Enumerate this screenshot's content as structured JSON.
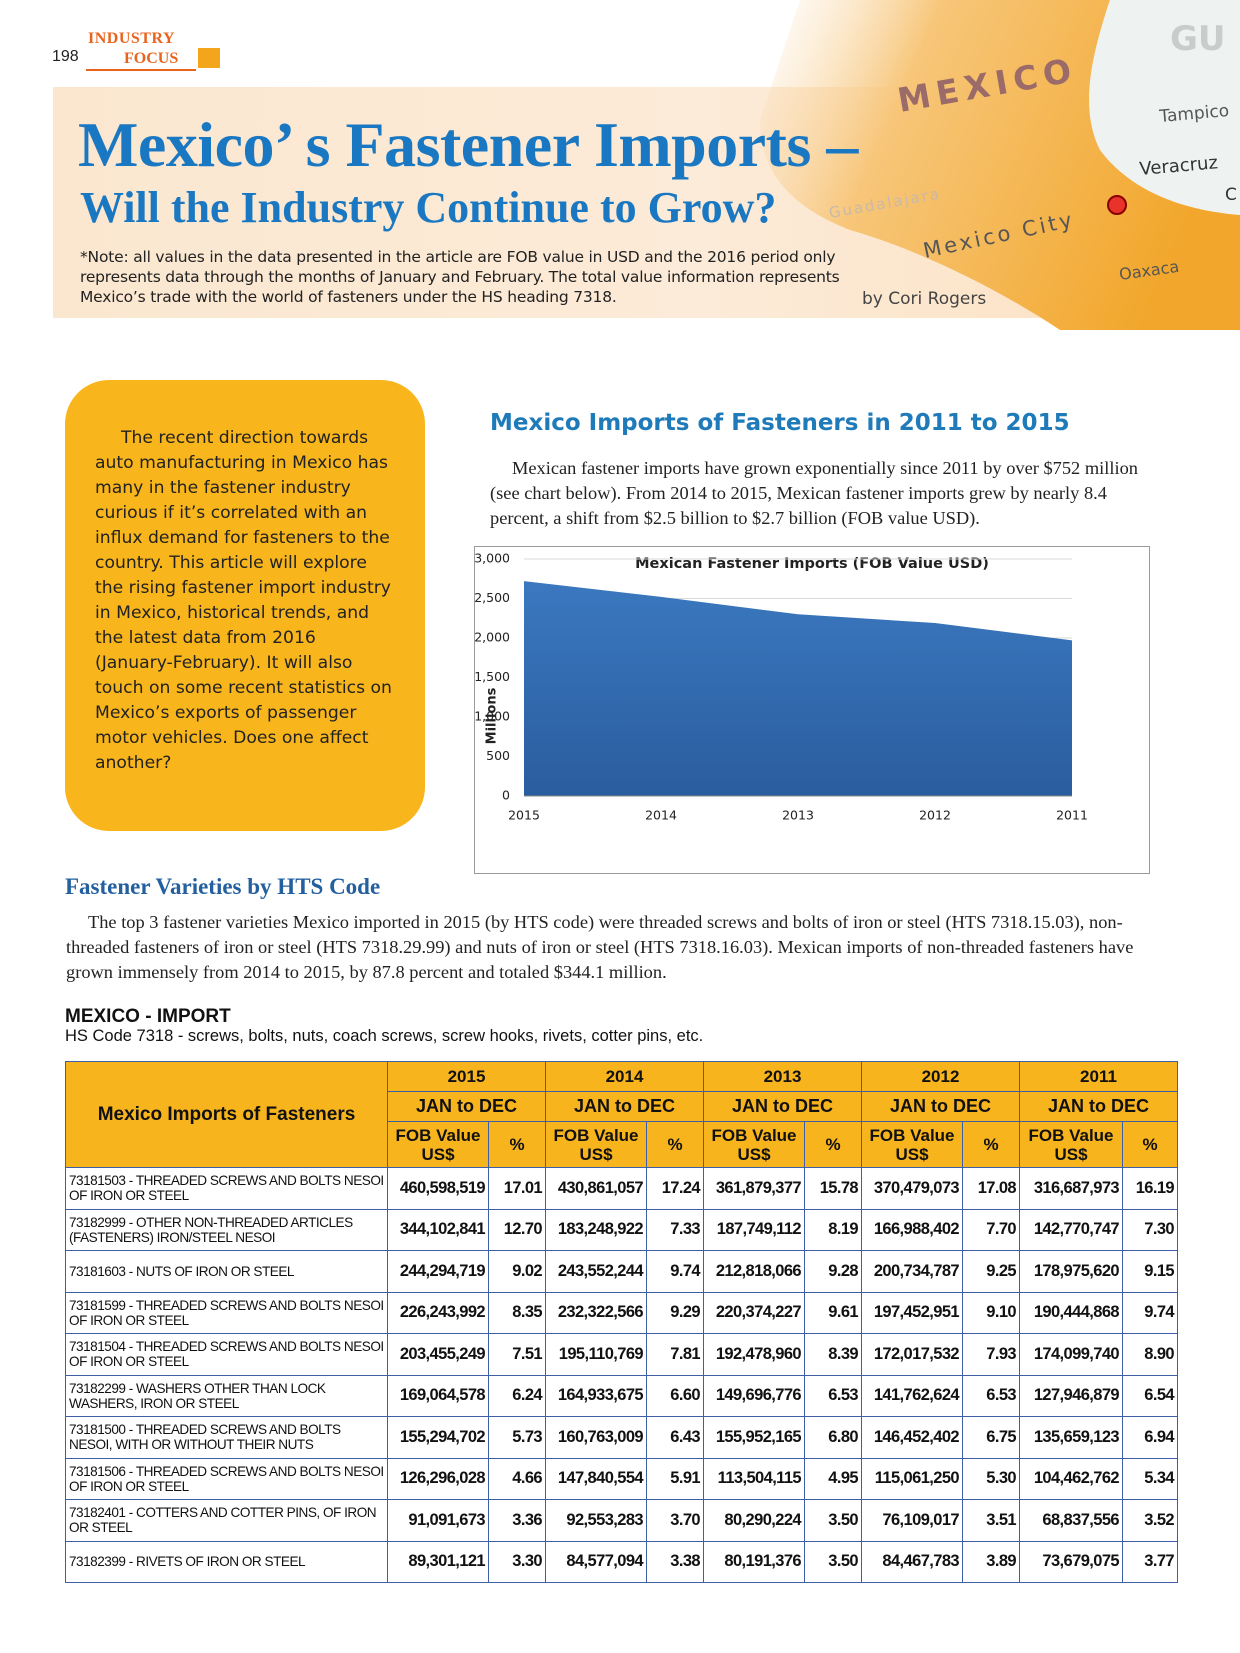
{
  "header": {
    "page_number": "198",
    "section_top": "INDUSTRY",
    "section_bottom": "FOCUS"
  },
  "map_labels": [
    "GU",
    "MEXICO",
    "Tampico",
    "Veracruz",
    "C",
    "Guadalajara",
    "Mexico City",
    "Oaxaca"
  ],
  "title": {
    "line1": "Mexico’ s Fastener Imports –",
    "line2": "Will the Industry Continue to Grow?"
  },
  "note": "*Note: all values in the data presented in the article are FOB value in USD and the 2016 period only represents data through the months of January and February. The total value information represents Mexico’s trade with the world of fasteners under the HS heading 7318.",
  "byline": "by Cori Rogers",
  "sidebar": "The recent direction towards auto manufacturing in Mexico has many in the fastener industry curious if it’s correlated with an influx demand for fasteners to the country. This article will explore the rising fastener import industry in Mexico, historical trends, and the latest data from 2016 (January-February). It will also touch on some recent statistics on Mexico’s exports of passenger motor vehicles. Does one affect another?",
  "section1": {
    "heading": "Mexico Imports of Fasteners in 2011 to 2015",
    "body": "Mexican fastener imports have grown exponentially since 2011 by over $752 million (see chart below). From 2014 to 2015, Mexican fastener imports grew by nearly 8.4 percent, a shift from $2.5 billion to $2.7 billion (FOB value USD)."
  },
  "chart_data": {
    "type": "area",
    "title": "Mexican Fastener Imports (FOB Value USD)",
    "y_label": "Millions",
    "categories": [
      "2015",
      "2014",
      "2013",
      "2012",
      "2011"
    ],
    "values": [
      2720,
      2520,
      2300,
      2190,
      1970
    ],
    "color": "#3b78bf",
    "ylim": [
      0,
      3000
    ],
    "yticks": [
      0,
      500,
      {
        "value": 1000,
        "label": "1,000"
      },
      {
        "value": 1500,
        "label": "1,500"
      },
      {
        "value": 2000,
        "label": "2,000"
      },
      {
        "value": 2500,
        "label": "2,500"
      },
      {
        "value": 3000,
        "label": "3,000"
      }
    ],
    "grid": true
  },
  "section2": {
    "heading": "Fastener Varieties by HTS Code",
    "body": "The top 3 fastener varieties Mexico imported in 2015 (by HTS code) were threaded screws and bolts of iron or steel (HTS 7318.15.03), non-threaded fasteners of iron or steel (HTS 7318.29.99) and nuts of iron or steel (HTS 7318.16.03). Mexican imports of non-threaded fasteners have grown immensely from 2014 to 2015, by 87.8 percent and totaled $344.1 million."
  },
  "table": {
    "title": "MEXICO - IMPORT",
    "subtitle": "HS Code 7318 - screws, bolts, nuts, coach screws, screw hooks, rivets, cotter pins, etc.",
    "corner": "Mexico Imports of Fasteners",
    "years": [
      "2015",
      "2014",
      "2013",
      "2012",
      "2011"
    ],
    "period": "JAN to DEC",
    "value_header": "FOB Value US$",
    "pct_header": "%",
    "rows": [
      {
        "description": "73181503 - THREADED SCREWS AND BOLTS NESOI OF IRON OR STEEL",
        "cells": [
          "460,598,519",
          "17.01",
          "430,861,057",
          "17.24",
          "361,879,377",
          "15.78",
          "370,479,073",
          "17.08",
          "316,687,973",
          "16.19"
        ]
      },
      {
        "description": "73182999 - OTHER NON-THREADED ARTICLES (FASTENERS) IRON/STEEL NESOI",
        "cells": [
          "344,102,841",
          "12.70",
          "183,248,922",
          "7.33",
          "187,749,112",
          "8.19",
          "166,988,402",
          "7.70",
          "142,770,747",
          "7.30"
        ]
      },
      {
        "description": "73181603 - NUTS OF IRON OR STEEL",
        "cells": [
          "244,294,719",
          "9.02",
          "243,552,244",
          "9.74",
          "212,818,066",
          "9.28",
          "200,734,787",
          "9.25",
          "178,975,620",
          "9.15"
        ]
      },
      {
        "description": "73181599 - THREADED SCREWS AND BOLTS NESOI OF IRON OR STEEL",
        "cells": [
          "226,243,992",
          "8.35",
          "232,322,566",
          "9.29",
          "220,374,227",
          "9.61",
          "197,452,951",
          "9.10",
          "190,444,868",
          "9.74"
        ]
      },
      {
        "description": "73181504 - THREADED SCREWS AND BOLTS NESOI OF IRON OR STEEL",
        "cells": [
          "203,455,249",
          "7.51",
          "195,110,769",
          "7.81",
          "192,478,960",
          "8.39",
          "172,017,532",
          "7.93",
          "174,099,740",
          "8.90"
        ]
      },
      {
        "description": "73182299 - WASHERS OTHER THAN LOCK WASHERS, IRON OR STEEL",
        "cells": [
          "169,064,578",
          "6.24",
          "164,933,675",
          "6.60",
          "149,696,776",
          "6.53",
          "141,762,624",
          "6.53",
          "127,946,879",
          "6.54"
        ]
      },
      {
        "description": "73181500 - THREADED SCREWS AND BOLTS NESOI, WITH OR WITHOUT THEIR NUTS",
        "cells": [
          "155,294,702",
          "5.73",
          "160,763,009",
          "6.43",
          "155,952,165",
          "6.80",
          "146,452,402",
          "6.75",
          "135,659,123",
          "6.94"
        ]
      },
      {
        "description": "73181506 - THREADED SCREWS AND BOLTS NESOI OF IRON OR STEEL",
        "cells": [
          "126,296,028",
          "4.66",
          "147,840,554",
          "5.91",
          "113,504,115",
          "4.95",
          "115,061,250",
          "5.30",
          "104,462,762",
          "5.34"
        ]
      },
      {
        "description": "73182401 - COTTERS AND COTTER PINS, OF IRON OR STEEL",
        "cells": [
          "91,091,673",
          "3.36",
          "92,553,283",
          "3.70",
          "80,290,224",
          "3.50",
          "76,109,017",
          "3.51",
          "68,837,556",
          "3.52"
        ]
      },
      {
        "description": "73182399 - RIVETS OF IRON OR STEEL",
        "cells": [
          "89,301,121",
          "3.30",
          "84,577,094",
          "3.38",
          "80,191,376",
          "3.50",
          "84,467,783",
          "3.89",
          "73,679,075",
          "3.77"
        ]
      }
    ]
  }
}
